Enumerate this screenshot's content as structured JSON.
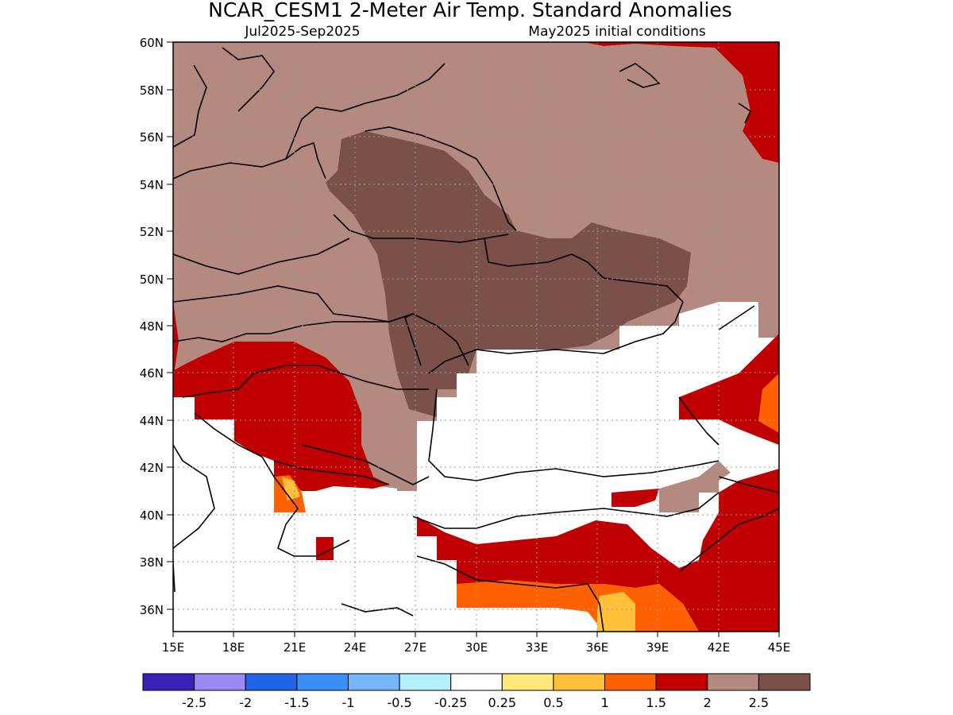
{
  "title": "NCAR_CESM1 2-Meter Air Temp. Standard Anomalies",
  "period": "Jul2025-Sep2025",
  "init": "May2025 initial conditions",
  "map": {
    "lat_labels": [
      "60N",
      "58N",
      "56N",
      "54N",
      "52N",
      "50N",
      "48N",
      "46N",
      "44N",
      "42N",
      "40N",
      "38N",
      "36N"
    ],
    "lon_labels": [
      "15E",
      "18E",
      "21E",
      "24E",
      "27E",
      "30E",
      "33E",
      "36E",
      "39E",
      "42E",
      "45E"
    ],
    "lat_range": [
      35,
      60
    ],
    "lon_range": [
      15,
      45
    ],
    "grid": "dotted"
  },
  "legend": {
    "colors": [
      "#3a20b8",
      "#9c88f5",
      "#1f63e6",
      "#3a8ef5",
      "#75b6fa",
      "#b4f0fa",
      "#ffffff",
      "#ffe87c",
      "#ffc13a",
      "#ff6000",
      "#c00000",
      "#b48a80",
      "#7a5048"
    ],
    "labels": [
      "-2.5",
      "-2",
      "-1.5",
      "-1",
      "-0.5",
      "-0.25",
      "0.25",
      "0.5",
      "1",
      "1.5",
      "2",
      "2.5"
    ]
  },
  "colors": {
    "dark_brown": "#7a5048",
    "light_brown": "#b48a80",
    "red": "#c00000",
    "orange": "#ff6000",
    "light_orange": "#ffc13a"
  }
}
